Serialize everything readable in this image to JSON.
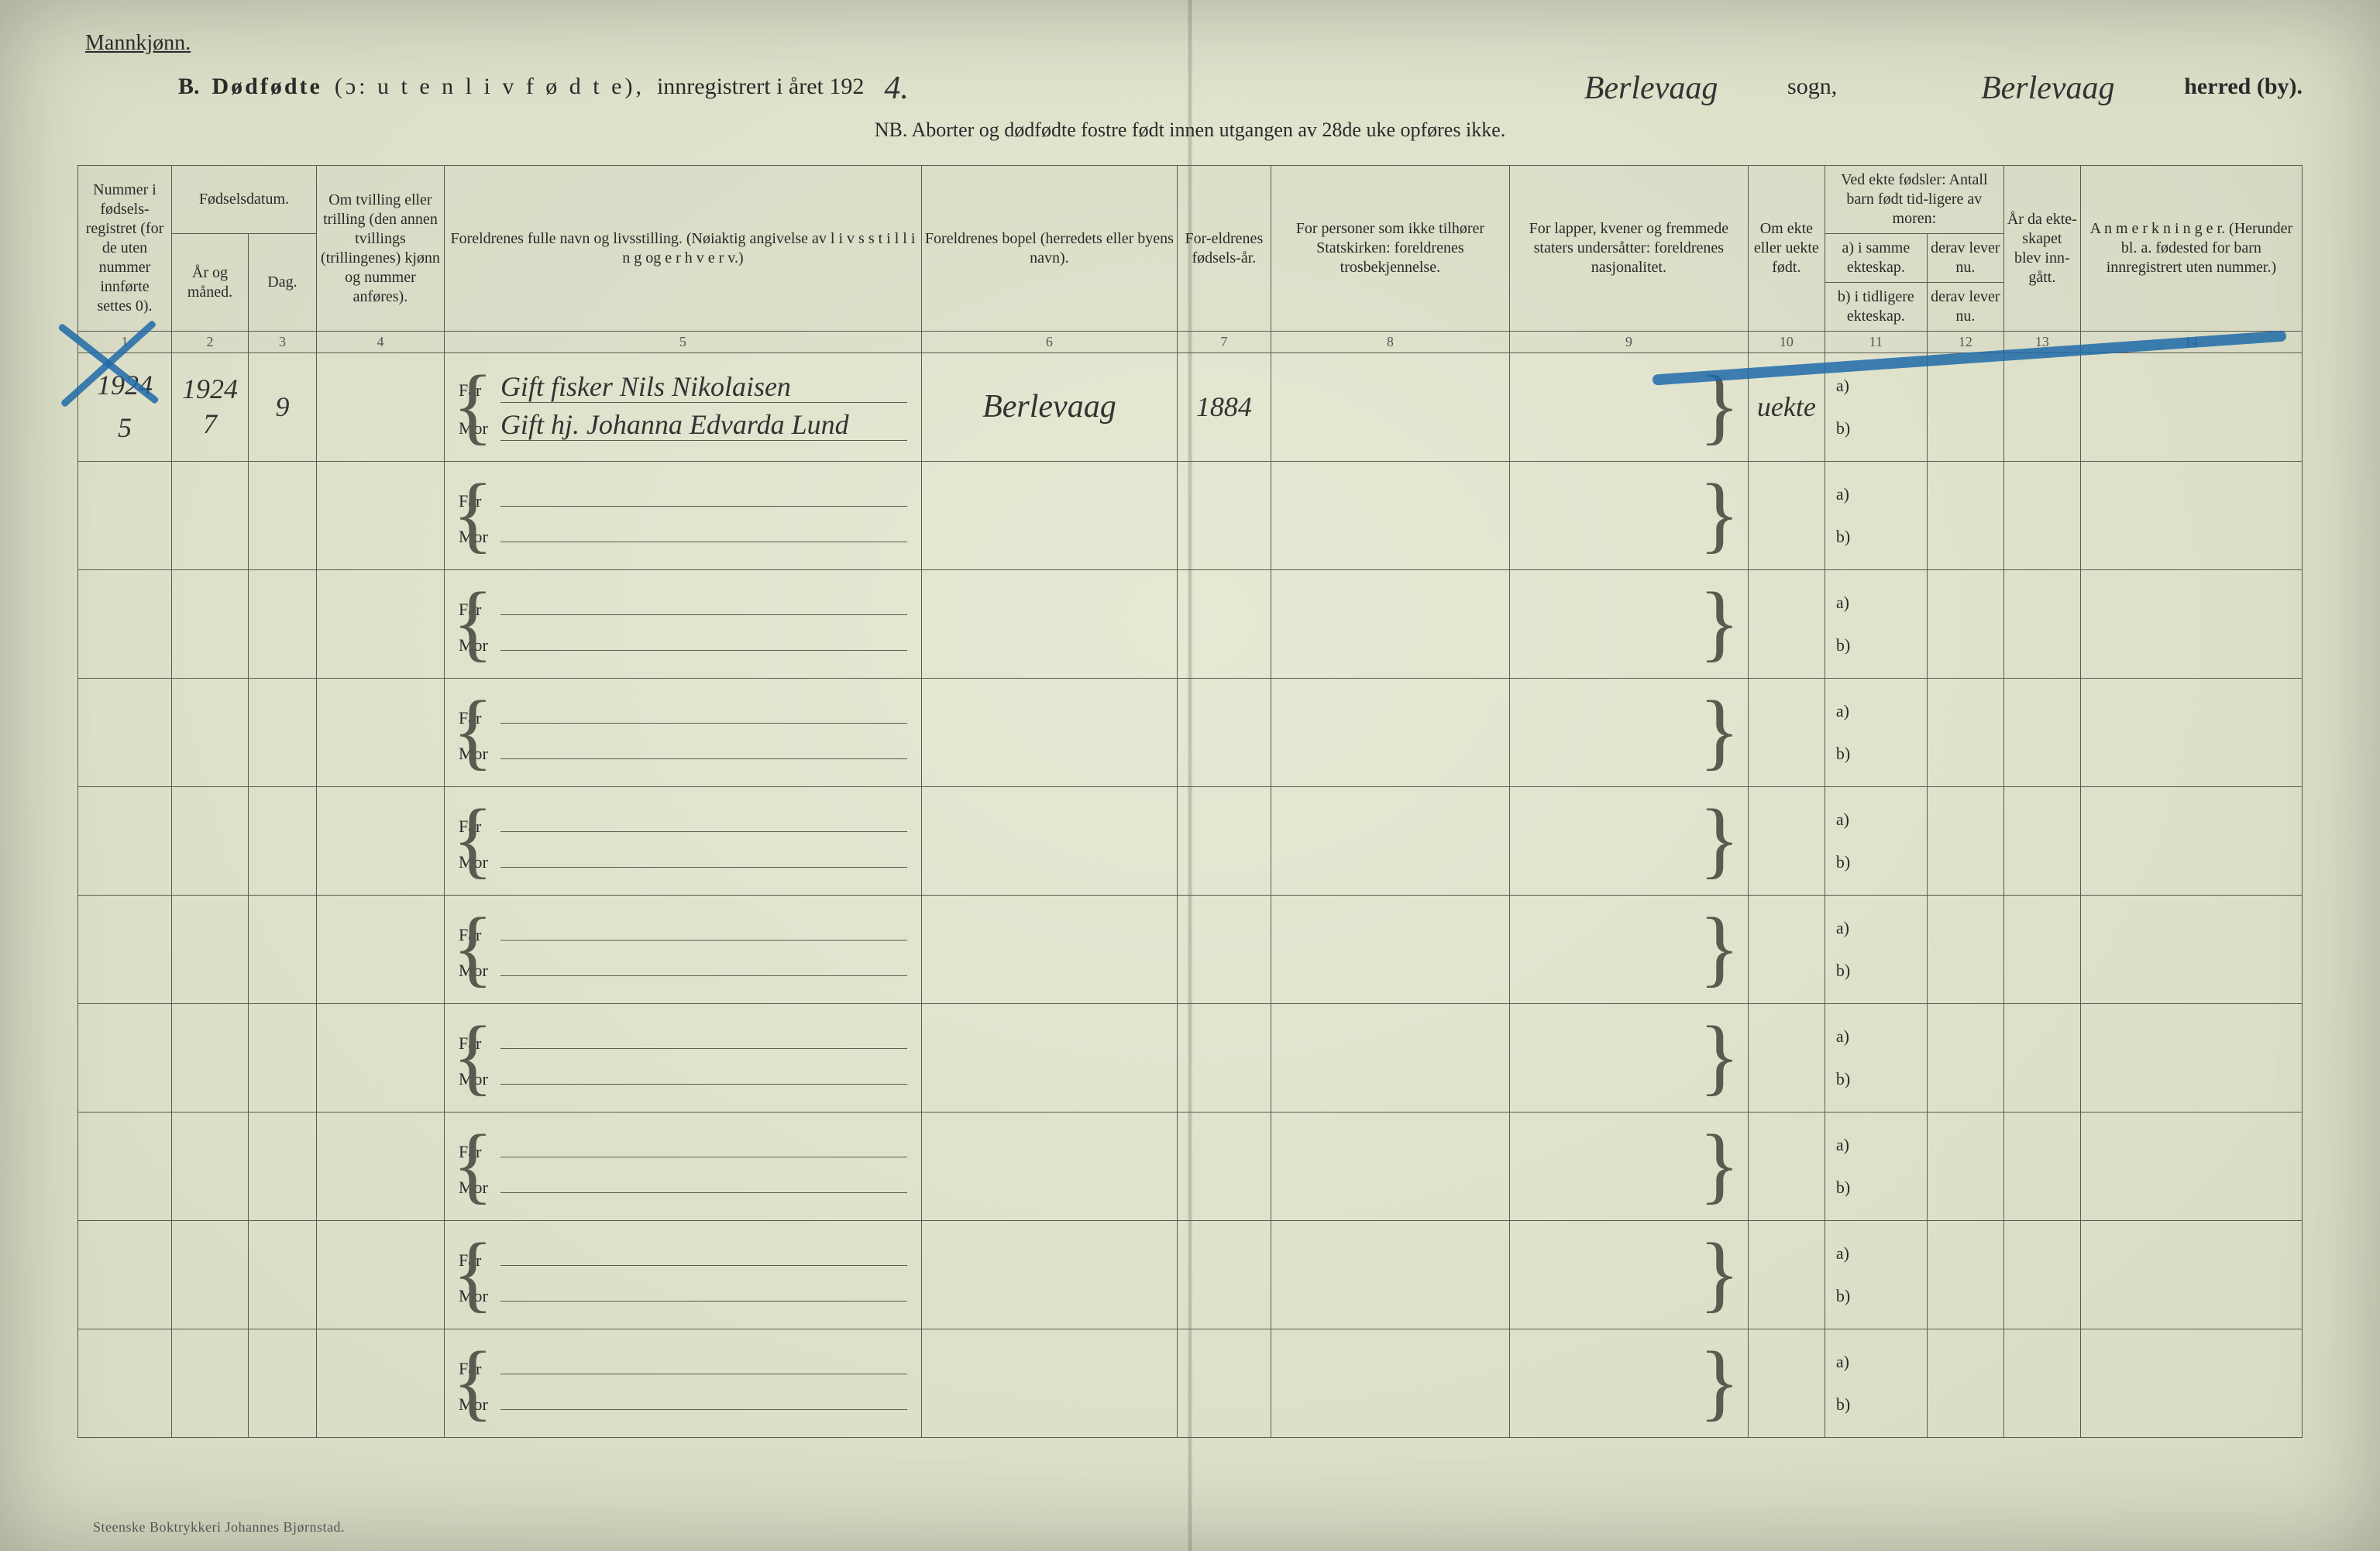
{
  "meta": {
    "gender_heading": "Mannkjønn.",
    "section_letter": "B.",
    "section_title_strong": "Dødfødte",
    "section_title_paren": "(ɔ: u t e n  l i v  f ø d t e),",
    "section_title_tail": "innregistrert i året 192",
    "year_suffix_hand": "4.",
    "sogn_label": "sogn,",
    "sogn_value": "Berlevaag",
    "herred_label": "herred (by).",
    "herred_value": "Berlevaag",
    "nb_line": "NB.  Aborter og dødfødte fostre født innen utgangen av 28de uke opføres ikke.",
    "printer": "Steenske Boktrykkeri Johannes Bjørnstad."
  },
  "columns": {
    "c1": "Nummer i fødsels-registret (for de uten nummer innførte settes 0).",
    "c2a": "Fødselsdatum.",
    "c2": "År og måned.",
    "c3": "Dag.",
    "c4": "Om tvilling eller trilling (den annen tvillings (trillingenes) kjønn og nummer anføres).",
    "c5": "Foreldrenes fulle navn og livsstilling. (Nøiaktig angivelse av l i v s s t i l l i n g  og  e r h v e r v.)",
    "c6": "Foreldrenes bopel (herredets eller byens navn).",
    "c7": "For-eldrenes fødsels-år.",
    "c8": "For personer som ikke tilhører Statskirken: foreldrenes trosbekjennelse.",
    "c9": "For lapper, kvener og fremmede staters undersåtter: foreldrenes nasjonalitet.",
    "c10": "Om ekte eller uekte født.",
    "c11_top": "Ved ekte fødsler: Antall barn født tid-ligere av moren:",
    "c11a": "a) i samme ekteskap.",
    "c11b": "b) i tidligere ekteskap.",
    "c12a": "derav lever nu.",
    "c12b": "derav lever nu.",
    "c13": "År da ekte-skapet blev inn-gått.",
    "c14": "A n m e r k n i n g e r. (Herunder bl. a. fødested for barn innregistrert uten nummer.)",
    "far": "Far",
    "mor": "Mor",
    "a_label": "a)",
    "b_label": "b)"
  },
  "colnums": [
    "1",
    "2",
    "3",
    "4",
    "5",
    "6",
    "7",
    "8",
    "9",
    "10",
    "11",
    "12",
    "13",
    "14"
  ],
  "rows": [
    {
      "num_top": "1924",
      "num_bottom": "5",
      "year_month": "1924  7",
      "day": "9",
      "far": "Gift fisker Nils Nikolaisen",
      "mor": "Gift hj. Johanna Edvarda Lund",
      "bopel": "Berlevaag",
      "foreldre_aar": "1884",
      "ekte": "uekte"
    },
    {},
    {},
    {},
    {},
    {},
    {},
    {},
    {},
    {}
  ],
  "style": {
    "paper_bg": "#e6e8d3",
    "rule_color": "#5a5a50",
    "ink_color": "#2a2a2a",
    "handwriting_color": "#333333",
    "blue_pencil": "#1e6aa8"
  }
}
